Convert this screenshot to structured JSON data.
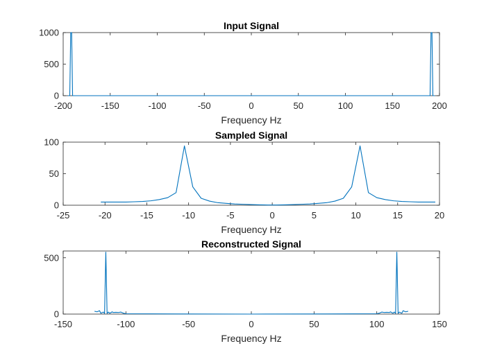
{
  "chart_data": [
    {
      "type": "line",
      "title": "Input Signal",
      "xlabel": "Frequency Hz",
      "ylabel": "",
      "xlim": [
        -200,
        200
      ],
      "ylim": [
        0,
        1000
      ],
      "xticks": [
        -200,
        -150,
        -100,
        -50,
        0,
        50,
        100,
        150,
        200
      ],
      "yticks": [
        0,
        500,
        1000
      ],
      "color": "#0072BD",
      "series": [
        {
          "x": [
            -195,
            -193,
            -192,
            -191,
            -190,
            -188,
            0,
            188,
            190,
            191,
            192,
            193,
            195
          ],
          "y": [
            0,
            0,
            1000,
            1000,
            0,
            0,
            0,
            0,
            0,
            1000,
            1000,
            0,
            0
          ]
        }
      ]
    },
    {
      "type": "line",
      "title": "Sampled Signal",
      "xlabel": "Frequency Hz",
      "ylabel": "",
      "xlim": [
        -25,
        20
      ],
      "ylim": [
        0,
        100
      ],
      "xticks": [
        -25,
        -20,
        -15,
        -10,
        -5,
        0,
        5,
        10,
        15,
        20
      ],
      "yticks": [
        0,
        50,
        100
      ],
      "color": "#0072BD",
      "series": [
        {
          "x": [
            -20.5,
            -19.5,
            -18.5,
            -17.5,
            -16.5,
            -15.5,
            -14.5,
            -13.5,
            -12.5,
            -11.5,
            -10.5,
            -9.5,
            -8.5,
            -7.5,
            -6.5,
            -5.5,
            -4.5,
            -3.5,
            -2.5,
            -1.5,
            -0.5,
            0.5,
            1.5,
            2.5,
            3.5,
            4.5,
            5.5,
            6.5,
            7.5,
            8.5,
            9.5,
            10.5,
            11.5,
            12.5,
            13.5,
            14.5,
            15.5,
            16.5,
            17.5,
            18.5,
            19.5
          ],
          "y": [
            5,
            5,
            5,
            5,
            5.5,
            6,
            7,
            9,
            12,
            20,
            94,
            29,
            11,
            6.5,
            4,
            3,
            2,
            1.5,
            1,
            0.6,
            0.4,
            0.4,
            0.6,
            1,
            1.5,
            2,
            3,
            4,
            6.5,
            11,
            29,
            94,
            20,
            12,
            9,
            7,
            6,
            5.5,
            5,
            5,
            5
          ]
        }
      ]
    },
    {
      "type": "line",
      "title": "Reconstructed Signal",
      "xlabel": "Frequency Hz",
      "ylabel": "",
      "xlim": [
        -150,
        150
      ],
      "ylim": [
        0,
        560
      ],
      "xticks": [
        -150,
        -100,
        -50,
        0,
        50,
        100,
        150
      ],
      "yticks": [
        0,
        500
      ],
      "color": "#0072BD",
      "series": [
        {
          "x": [
            -125,
            -123,
            -121,
            -120,
            -119,
            -118,
            -117,
            -116,
            -115,
            -114,
            -113,
            -112,
            -111,
            -110,
            -108,
            -106,
            -104,
            -102,
            -100,
            -60,
            0,
            60,
            100,
            102,
            104,
            106,
            108,
            110,
            111,
            112,
            113,
            114,
            115,
            116,
            117,
            118,
            119,
            120,
            121,
            123,
            125
          ],
          "y": [
            25,
            20,
            30,
            8,
            12,
            18,
            6,
            550,
            6,
            18,
            8,
            12,
            20,
            14,
            16,
            14,
            18,
            8,
            3,
            1,
            0,
            1,
            3,
            8,
            18,
            14,
            16,
            14,
            20,
            12,
            8,
            18,
            6,
            550,
            6,
            18,
            12,
            8,
            30,
            20,
            25
          ]
        }
      ]
    }
  ]
}
